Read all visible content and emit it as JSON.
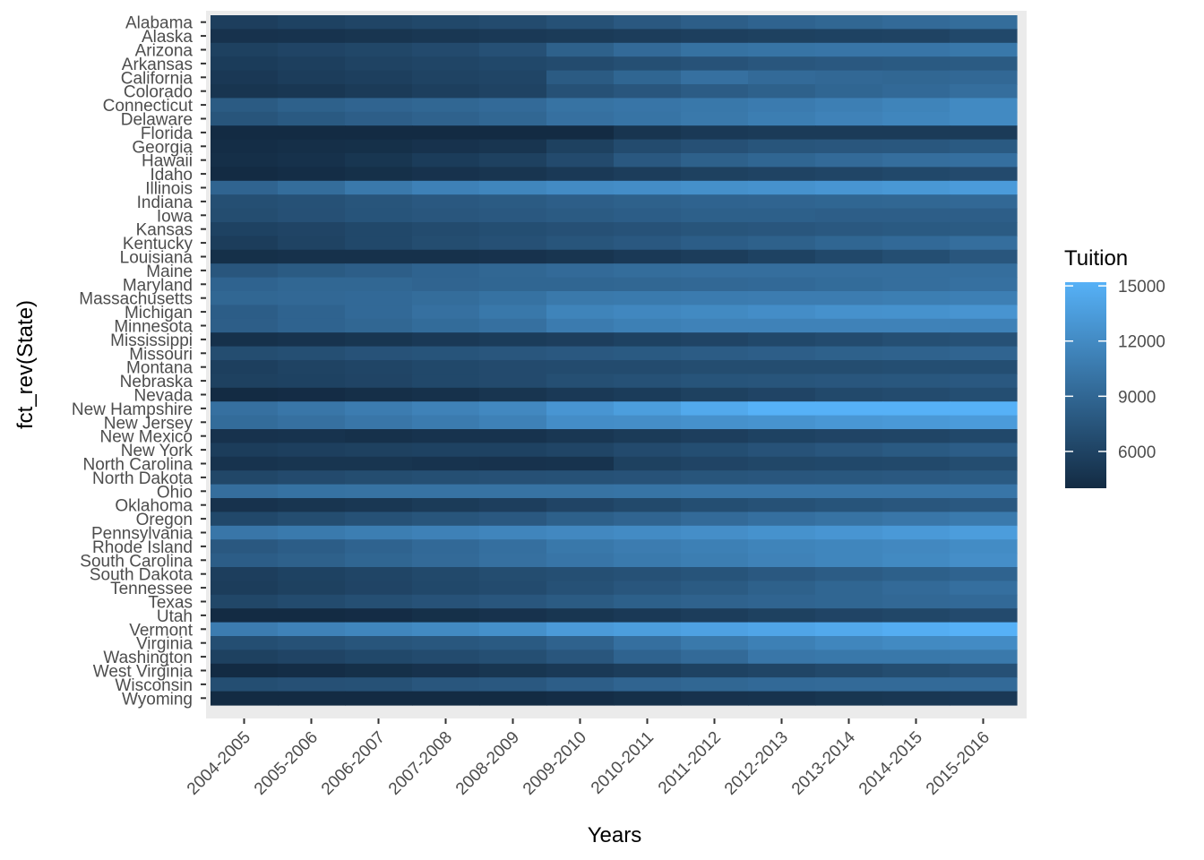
{
  "chart_data": {
    "type": "heatmap",
    "title": "",
    "xlabel": "Years",
    "ylabel": "fct_rev(State)",
    "legend": {
      "title": "Tuition",
      "placement": "right",
      "breaks": [
        6000,
        9000,
        12000,
        15000
      ],
      "break_labels": [
        "6000",
        "9000",
        "12000",
        "15000"
      ],
      "range": [
        4000,
        15200
      ],
      "low_color": "#132B43",
      "high_color": "#56B1F7"
    },
    "x": [
      "2004-2005",
      "2005-2006",
      "2006-2007",
      "2007-2008",
      "2008-2009",
      "2009-2010",
      "2010-2011",
      "2011-2012",
      "2012-2013",
      "2013-2014",
      "2014-2015",
      "2015-2016"
    ],
    "y": [
      "Alabama",
      "Alaska",
      "Arizona",
      "Arkansas",
      "California",
      "Colorado",
      "Connecticut",
      "Delaware",
      "Florida",
      "Georgia",
      "Hawaii",
      "Idaho",
      "Illinois",
      "Indiana",
      "Iowa",
      "Kansas",
      "Kentucky",
      "Louisiana",
      "Maine",
      "Maryland",
      "Massachusetts",
      "Michigan",
      "Minnesota",
      "Mississippi",
      "Missouri",
      "Montana",
      "Nebraska",
      "Nevada",
      "New Hampshire",
      "New Jersey",
      "New Mexico",
      "New York",
      "North Carolina",
      "North Dakota",
      "Ohio",
      "Oklahoma",
      "Oregon",
      "Pennsylvania",
      "Rhode Island",
      "South Carolina",
      "South Dakota",
      "Tennessee",
      "Texas",
      "Utah",
      "Vermont",
      "Virginia",
      "Washington",
      "West Virginia",
      "Wisconsin",
      "Wyoming"
    ],
    "values": [
      [
        5600,
        5900,
        6200,
        6400,
        6700,
        7200,
        7800,
        8300,
        8700,
        9000,
        9300,
        9500
      ],
      [
        4600,
        4700,
        4800,
        5000,
        5200,
        5300,
        5500,
        5700,
        5800,
        5900,
        6000,
        6400
      ],
      [
        5800,
        6100,
        6300,
        6600,
        7100,
        8500,
        9300,
        9900,
        10100,
        10200,
        10200,
        10400
      ],
      [
        5400,
        5700,
        6000,
        6200,
        6400,
        6700,
        7000,
        7300,
        7600,
        7800,
        7900,
        8000
      ],
      [
        5100,
        5500,
        5700,
        6000,
        6200,
        8000,
        8900,
        9800,
        9300,
        9100,
        9000,
        9100
      ],
      [
        4800,
        5000,
        5300,
        5700,
        6000,
        7200,
        7600,
        8100,
        8500,
        8900,
        9200,
        9600
      ],
      [
        8000,
        8500,
        8800,
        9000,
        9300,
        10000,
        10200,
        10400,
        10700,
        11000,
        11400,
        11900
      ],
      [
        7500,
        7900,
        8300,
        8600,
        9000,
        9800,
        10100,
        10500,
        10900,
        11300,
        11600,
        11900
      ],
      [
        3500,
        3500,
        3500,
        3500,
        3600,
        3900,
        4800,
        5200,
        5300,
        5300,
        5300,
        5300
      ],
      [
        4200,
        4300,
        4400,
        4600,
        4800,
        5800,
        6700,
        7100,
        7500,
        7600,
        7700,
        7900
      ],
      [
        4300,
        4500,
        4900,
        5400,
        5800,
        6600,
        7800,
        8500,
        8900,
        9300,
        9600,
        9700
      ],
      [
        4000,
        4200,
        4400,
        4600,
        4800,
        5200,
        5500,
        5800,
        6000,
        6200,
        6400,
        6600
      ],
      [
        8800,
        9500,
        10500,
        11200,
        11600,
        12000,
        12200,
        12400,
        12600,
        12900,
        13100,
        13400
      ],
      [
        7000,
        7200,
        7500,
        7800,
        8000,
        8300,
        8500,
        8700,
        8800,
        8900,
        9000,
        9100
      ],
      [
        6800,
        7100,
        7400,
        7600,
        7800,
        8000,
        8200,
        8400,
        8400,
        8300,
        8300,
        8300
      ],
      [
        5900,
        6100,
        6400,
        6700,
        6900,
        7100,
        7300,
        7500,
        7600,
        7800,
        7900,
        8000
      ],
      [
        5500,
        6000,
        6400,
        6800,
        7100,
        7500,
        7800,
        8200,
        8500,
        8900,
        9200,
        9600
      ],
      [
        4400,
        4500,
        4500,
        4500,
        4600,
        4800,
        5200,
        5500,
        5900,
        6400,
        6900,
        7600
      ],
      [
        7600,
        8000,
        8300,
        8700,
        9000,
        9300,
        9500,
        9600,
        9600,
        9600,
        9600,
        9600
      ],
      [
        8700,
        9000,
        9000,
        8800,
        8900,
        8900,
        9000,
        9100,
        9200,
        9400,
        9600,
        9800
      ],
      [
        9000,
        9100,
        9200,
        9500,
        9900,
        10500,
        10600,
        10700,
        10800,
        10800,
        10900,
        11000
      ],
      [
        8200,
        8700,
        9200,
        9800,
        10400,
        11400,
        11700,
        11900,
        12200,
        12500,
        12600,
        12800
      ],
      [
        8300,
        8700,
        9000,
        9400,
        9800,
        10700,
        11100,
        11300,
        11300,
        11300,
        11300,
        11200
      ],
      [
        4500,
        4700,
        4900,
        5200,
        5400,
        5600,
        5900,
        6100,
        6400,
        6700,
        7000,
        7200
      ],
      [
        6800,
        7000,
        7300,
        7400,
        7600,
        7800,
        7900,
        8100,
        8300,
        8500,
        8600,
        8800
      ],
      [
        5700,
        6000,
        6200,
        6400,
        6600,
        6700,
        6700,
        6800,
        6800,
        6800,
        6900,
        6900
      ],
      [
        5800,
        5900,
        6100,
        6400,
        6600,
        7000,
        7200,
        7400,
        7500,
        7600,
        7700,
        7800
      ],
      [
        3900,
        4100,
        4300,
        4500,
        4800,
        5200,
        5400,
        5800,
        6100,
        6500,
        6700,
        6900
      ],
      [
        9800,
        10300,
        10800,
        11300,
        11800,
        12900,
        13600,
        14500,
        15200,
        15300,
        15400,
        15500
      ],
      [
        9400,
        9800,
        10300,
        10700,
        11200,
        12200,
        12300,
        12500,
        12700,
        13000,
        13200,
        13400
      ],
      [
        4600,
        4700,
        4500,
        4700,
        4700,
        5000,
        5300,
        5600,
        5900,
        6100,
        6200,
        6400
      ],
      [
        5500,
        5700,
        5800,
        5900,
        5900,
        6200,
        6600,
        6900,
        7300,
        7600,
        7900,
        8200
      ],
      [
        4700,
        4800,
        4800,
        4700,
        4600,
        4700,
        5800,
        6100,
        6300,
        6400,
        6500,
        6800
      ],
      [
        6300,
        6600,
        6800,
        7000,
        7100,
        7200,
        7300,
        7500,
        7600,
        7700,
        7800,
        7900
      ],
      [
        9600,
        9900,
        10000,
        10000,
        10000,
        10000,
        10100,
        10200,
        10200,
        10200,
        10200,
        10200
      ],
      [
        4600,
        4800,
        5000,
        5300,
        5600,
        6100,
        6500,
        6900,
        7200,
        7400,
        7600,
        7800
      ],
      [
        6400,
        6800,
        7200,
        7500,
        7800,
        8400,
        8800,
        9300,
        9700,
        10000,
        10300,
        10600
      ],
      [
        10300,
        10600,
        10900,
        11200,
        11500,
        11800,
        12000,
        12300,
        12600,
        12900,
        13200,
        13500
      ],
      [
        7800,
        8200,
        8700,
        9200,
        9700,
        10400,
        10800,
        11100,
        11400,
        11600,
        11800,
        12100
      ],
      [
        8200,
        8500,
        8900,
        9300,
        9800,
        10200,
        10600,
        10900,
        11300,
        11600,
        11900,
        12300
      ],
      [
        5600,
        5900,
        6200,
        6500,
        6800,
        7000,
        7200,
        7400,
        7800,
        8100,
        8400,
        8700
      ],
      [
        5500,
        5800,
        6100,
        6400,
        6700,
        7200,
        7600,
        8000,
        8500,
        8900,
        9300,
        9700
      ],
      [
        6300,
        6700,
        7000,
        7300,
        7600,
        8000,
        8400,
        8600,
        8800,
        8900,
        9100,
        9200
      ],
      [
        3600,
        3800,
        4100,
        4400,
        4600,
        4900,
        5200,
        5500,
        5800,
        6100,
        6300,
        6600
      ],
      [
        10800,
        11300,
        11600,
        11900,
        12400,
        13300,
        13600,
        13900,
        14200,
        14500,
        14900,
        15300
      ],
      [
        6900,
        7200,
        7500,
        7700,
        7900,
        8600,
        9700,
        10500,
        11100,
        11600,
        11900,
        12000
      ],
      [
        5800,
        6100,
        6400,
        6700,
        7000,
        7600,
        8700,
        9300,
        10300,
        10400,
        10400,
        10500
      ],
      [
        4000,
        4200,
        4400,
        4600,
        4900,
        5200,
        5500,
        5900,
        6200,
        6500,
        6800,
        7100
      ],
      [
        6900,
        7100,
        7200,
        7600,
        7800,
        8300,
        8800,
        9000,
        9200,
        9300,
        9300,
        9300
      ],
      [
        3600,
        3700,
        3800,
        3900,
        4000,
        4200,
        4400,
        4600,
        4700,
        4900,
        5000,
        5100
      ]
    ]
  }
}
